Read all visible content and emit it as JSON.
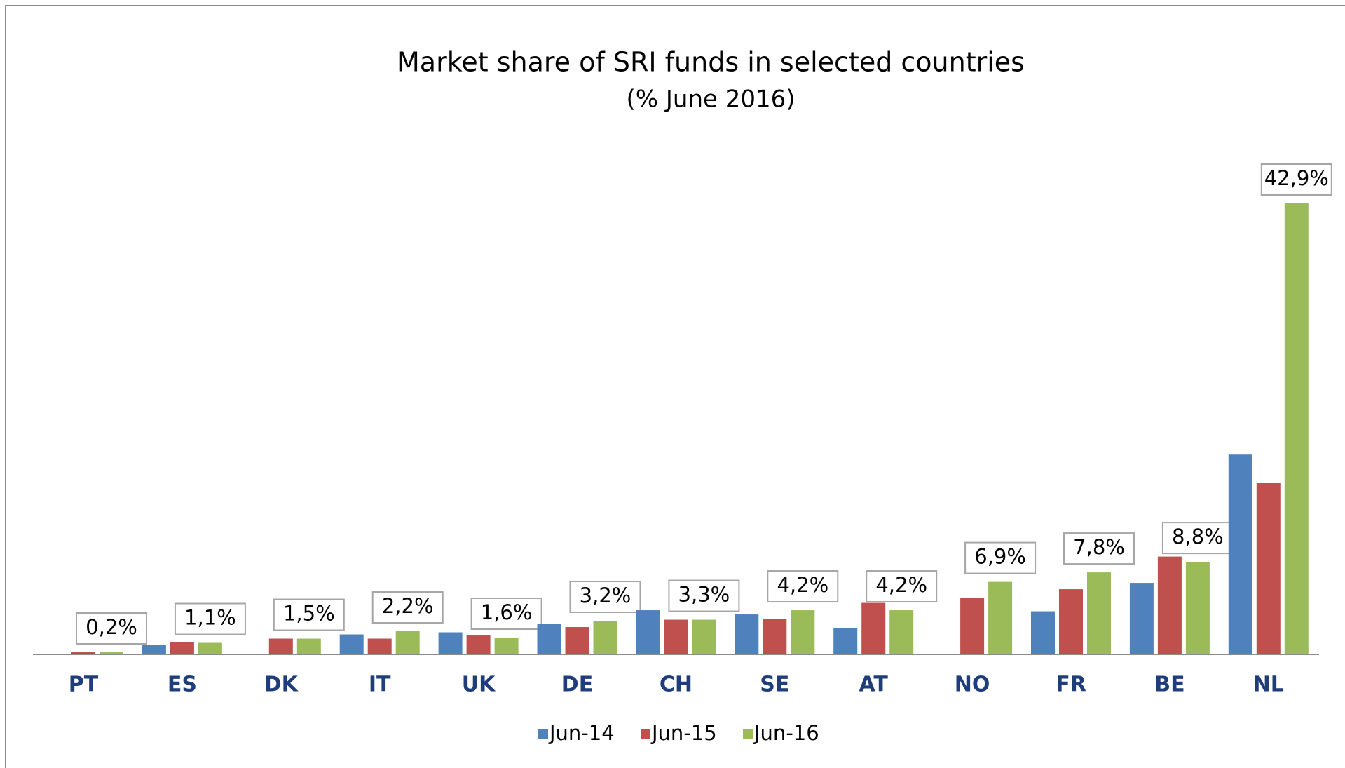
{
  "chart_data": {
    "type": "bar",
    "title": "Market share of SRI funds in selected countries",
    "subtitle": "(% June 2016)",
    "categories": [
      "PT",
      "ES",
      "DK",
      "IT",
      "UK",
      "DE",
      "CH",
      "SE",
      "AT",
      "NO",
      "FR",
      "BE",
      "NL"
    ],
    "series": [
      {
        "name": "Jun-14",
        "color": "#4f81bd",
        "values": [
          null,
          0.9,
          null,
          1.9,
          2.1,
          2.9,
          4.2,
          3.8,
          2.5,
          null,
          4.1,
          6.8,
          19.0
        ]
      },
      {
        "name": "Jun-15",
        "color": "#c0504d",
        "values": [
          0.2,
          1.2,
          1.5,
          1.5,
          1.8,
          2.6,
          3.3,
          3.4,
          4.9,
          5.4,
          6.2,
          9.3,
          16.3
        ]
      },
      {
        "name": "Jun-16",
        "color": "#9bbb59",
        "values": [
          0.2,
          1.1,
          1.5,
          2.2,
          1.6,
          3.2,
          3.3,
          4.2,
          4.2,
          6.9,
          7.8,
          8.8,
          42.9
        ],
        "value_labels": [
          "0,2%",
          "1,1%",
          "1,5%",
          "2,2%",
          "1,6%",
          "3,2%",
          "3,3%",
          "4,2%",
          "4,2%",
          "6,9%",
          "7,8%",
          "8,8%",
          "42,9%"
        ]
      }
    ],
    "legend": "bottom"
  }
}
